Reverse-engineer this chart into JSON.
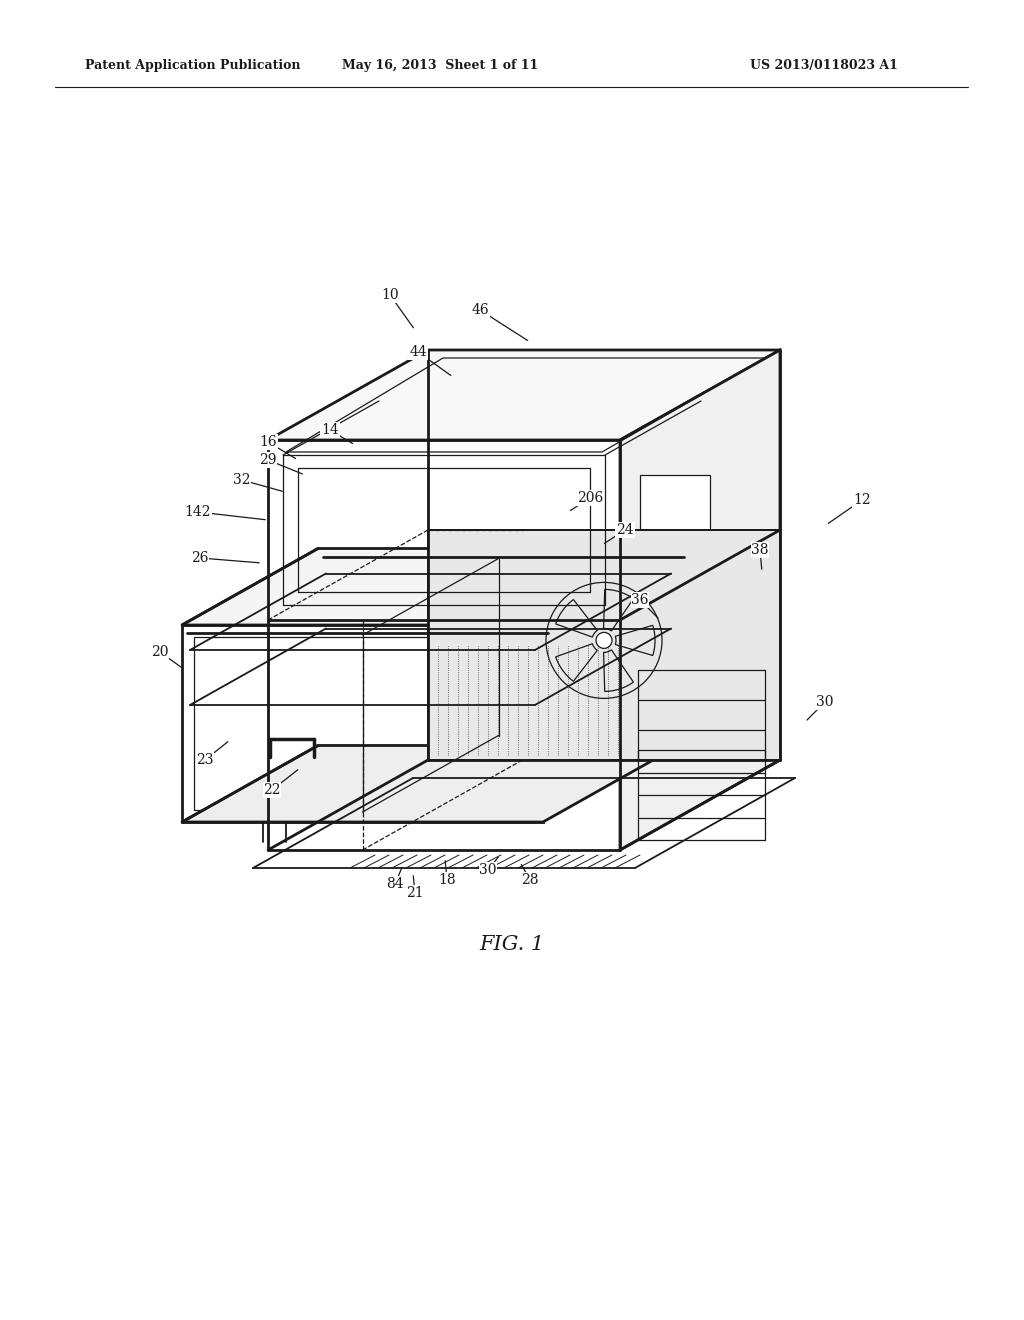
{
  "bg_color": "#ffffff",
  "line_color": "#1a1a1a",
  "header_left": "Patent Application Publication",
  "header_mid": "May 16, 2013  Sheet 1 of 11",
  "header_right": "US 2013/0118023 A1",
  "fig_label": "FIG. 1",
  "figsize": [
    10.24,
    13.2
  ],
  "dpi": 100
}
